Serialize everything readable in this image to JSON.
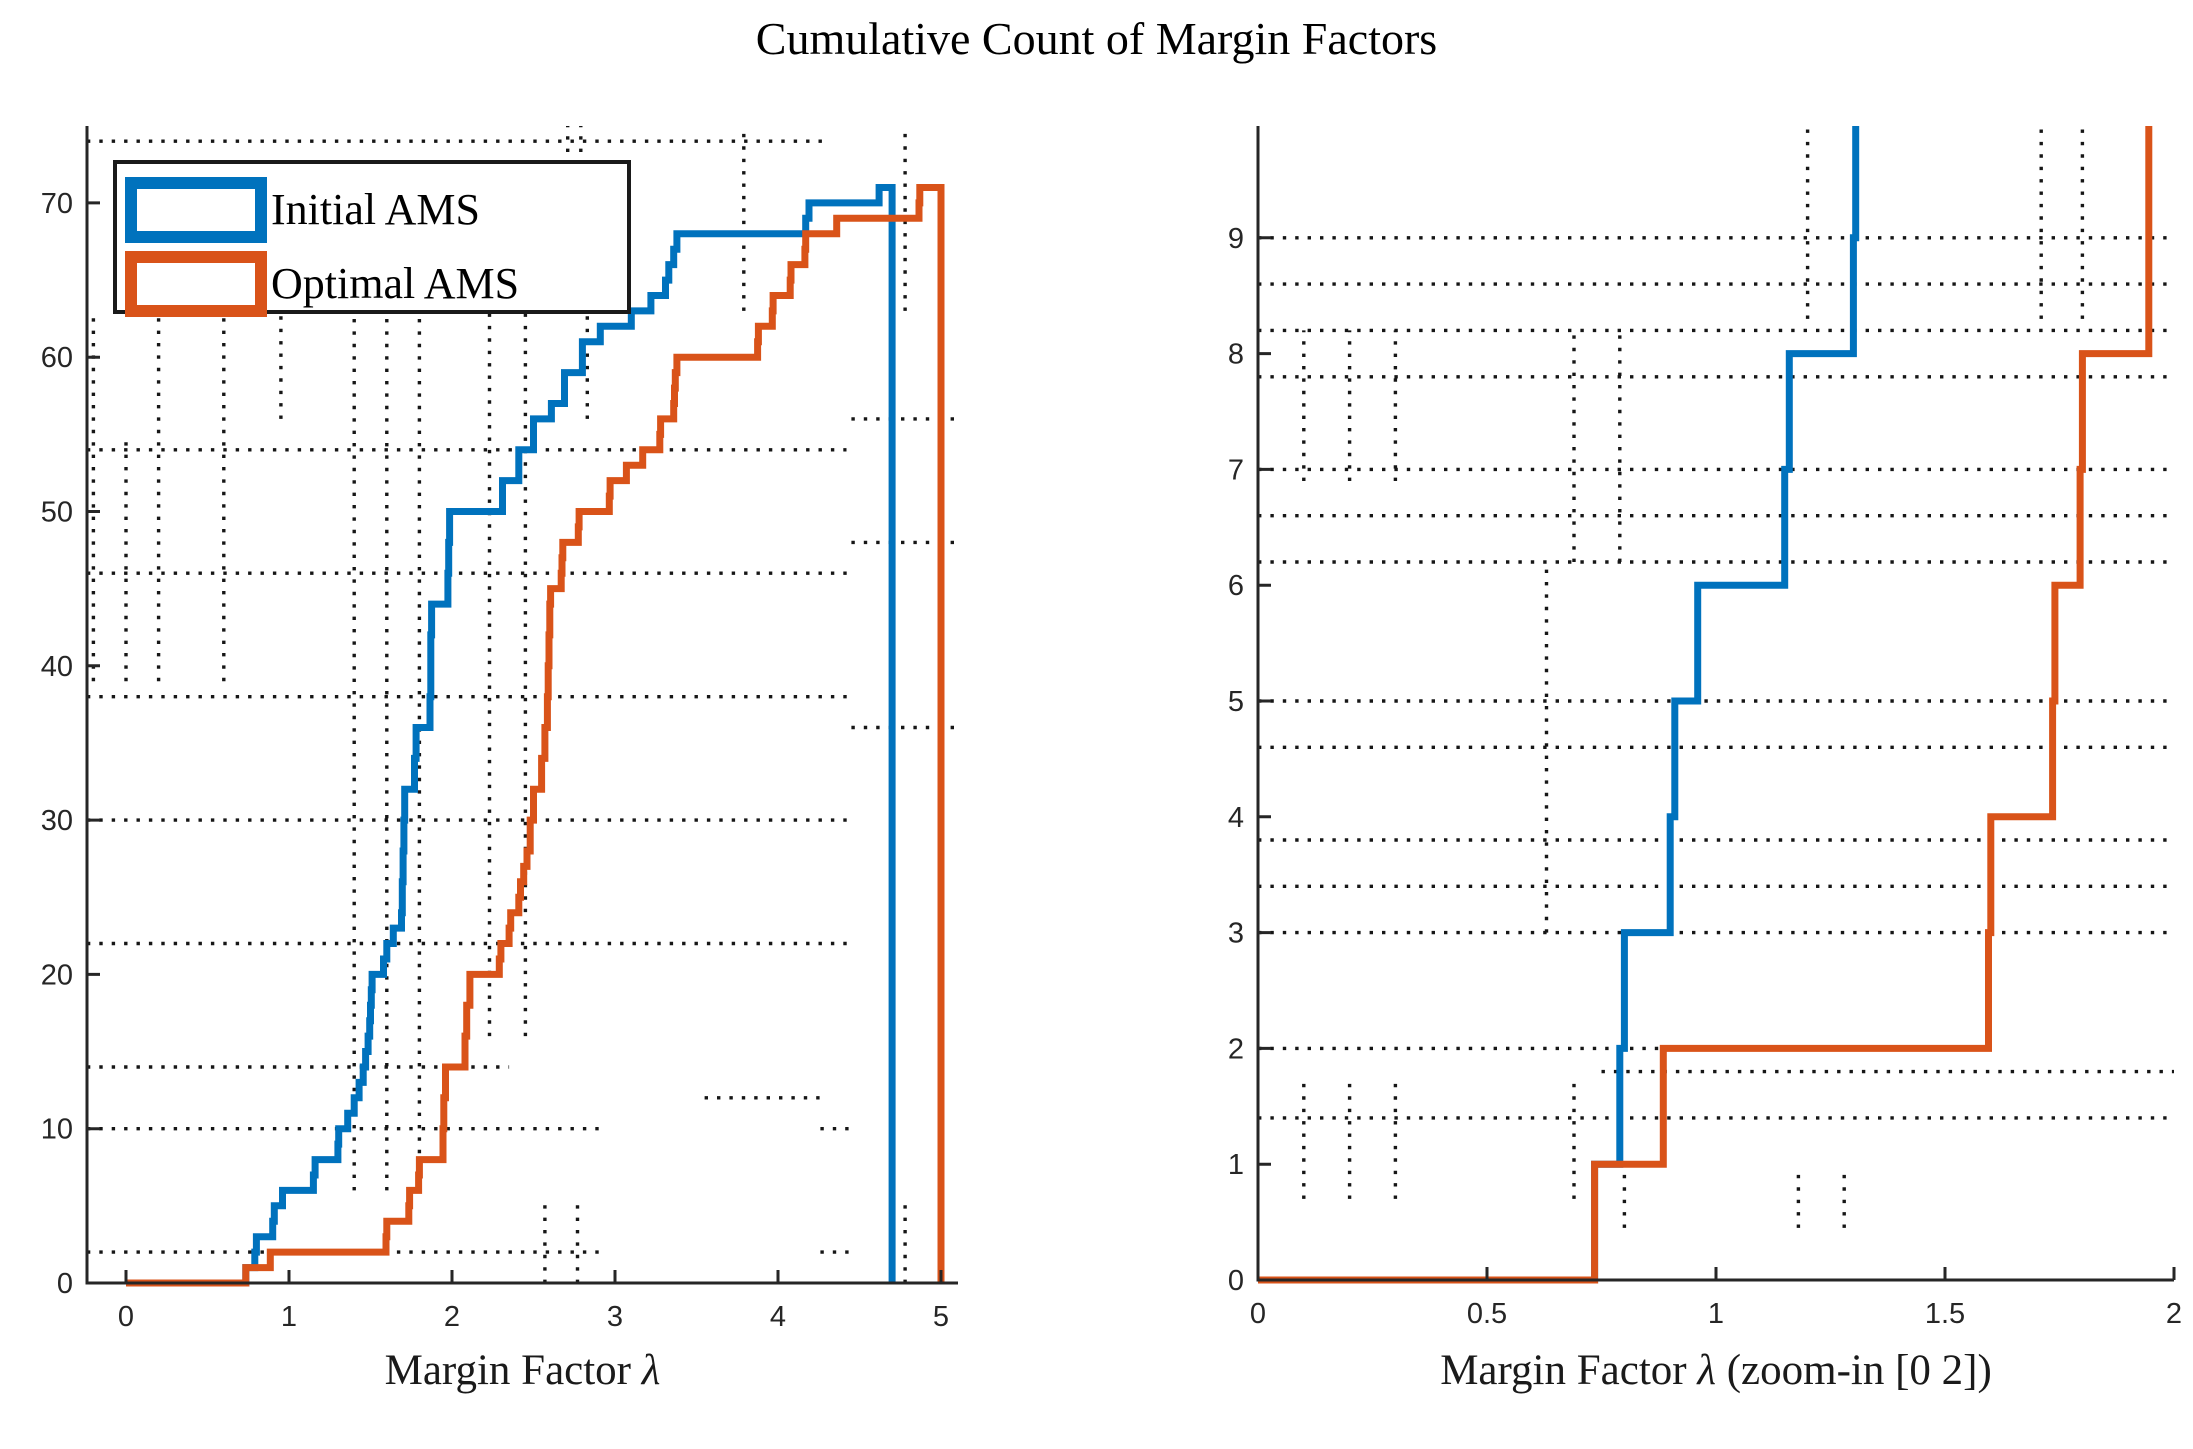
{
  "figure": {
    "title": "Cumulative Count of Margin Factors",
    "background": "#ffffff"
  },
  "legend": {
    "items": [
      {
        "label": "Initial AMS",
        "color": "#0072BD"
      },
      {
        "label": "Optimal AMS",
        "color": "#D95319"
      }
    ]
  },
  "chart_data": [
    {
      "type": "step",
      "id": "left",
      "title": "Cumulative Count of Margin Factors",
      "xlabel_pre": "Margin Factor ",
      "xlabel_lambda": "λ",
      "xlabel_post": "",
      "ylabel": "",
      "xlim": [
        -0.24,
        5.1
      ],
      "ylim": [
        0,
        75
      ],
      "xticks": [
        "0",
        "1",
        "2",
        "3",
        "4",
        "5"
      ],
      "xtick_vals": [
        0,
        1,
        2,
        3,
        4,
        5
      ],
      "yticks": [
        "0",
        "10",
        "20",
        "30",
        "40",
        "50",
        "60",
        "70"
      ],
      "ytick_vals": [
        0,
        10,
        20,
        30,
        40,
        50,
        60,
        70
      ],
      "grid": "dotted confidence-bound segments",
      "legend_position": "northwest",
      "dotted_h": [
        [
          74,
          -0.24,
          4.31
        ],
        [
          54,
          -0.24,
          4.42
        ],
        [
          56,
          4.45,
          5.1
        ],
        [
          48,
          4.45,
          5.1
        ],
        [
          46,
          -0.24,
          4.45
        ],
        [
          38,
          -0.24,
          4.45
        ],
        [
          36,
          4.45,
          5.1
        ],
        [
          30,
          -0.24,
          4.45
        ],
        [
          22,
          -0.24,
          4.45
        ],
        [
          14,
          -0.24,
          2.35
        ],
        [
          12,
          3.55,
          4.26
        ],
        [
          10,
          -0.24,
          2.9
        ],
        [
          10,
          4.26,
          4.45
        ],
        [
          2,
          -0.24,
          2.9
        ],
        [
          2,
          4.26,
          4.45
        ]
      ],
      "dotted_v": [
        [
          -0.2,
          39,
          63
        ],
        [
          0.0,
          39,
          55
        ],
        [
          0.2,
          39,
          63
        ],
        [
          0.6,
          39,
          63
        ],
        [
          0.95,
          56,
          63
        ],
        [
          1.4,
          6,
          63
        ],
        [
          1.6,
          6,
          63
        ],
        [
          1.8,
          6,
          63
        ],
        [
          2.23,
          16,
          63
        ],
        [
          2.45,
          16,
          63
        ],
        [
          2.83,
          56,
          63
        ],
        [
          2.57,
          0,
          5.5
        ],
        [
          2.77,
          0,
          5.5
        ],
        [
          2.71,
          73.3,
          75
        ],
        [
          2.79,
          73.3,
          75
        ],
        [
          3.79,
          63,
          74.6
        ],
        [
          4.78,
          63,
          74.6
        ],
        [
          4.78,
          0,
          5.2
        ]
      ]
    },
    {
      "type": "step",
      "id": "right",
      "xlabel_pre": "Margin Factor ",
      "xlabel_lambda": "λ",
      "xlabel_post": " (zoom-in [0 2])",
      "ylabel": "",
      "xlim": [
        0,
        2
      ],
      "ylim": [
        0,
        9.97
      ],
      "xticks": [
        "0",
        "0.5",
        "1",
        "1.5",
        "2"
      ],
      "xtick_vals": [
        0,
        0.5,
        1,
        1.5,
        2
      ],
      "yticks": [
        "0",
        "1",
        "2",
        "3",
        "4",
        "5",
        "6",
        "7",
        "8",
        "9"
      ],
      "ytick_vals": [
        0,
        1,
        2,
        3,
        4,
        5,
        6,
        7,
        8,
        9
      ],
      "grid": "dotted confidence-bound segments",
      "dotted_h": [
        [
          9.0,
          0,
          2
        ],
        [
          8.6,
          0,
          2
        ],
        [
          8.2,
          0,
          2
        ],
        [
          7.8,
          0,
          2
        ],
        [
          7.0,
          0,
          2
        ],
        [
          6.6,
          0,
          2
        ],
        [
          6.2,
          0,
          2
        ],
        [
          5.0,
          0,
          2
        ],
        [
          4.6,
          0,
          2
        ],
        [
          3.8,
          0,
          2
        ],
        [
          3.4,
          0,
          2
        ],
        [
          3.0,
          0,
          2
        ],
        [
          2.0,
          0,
          0.88
        ],
        [
          1.8,
          0.75,
          2
        ],
        [
          1.4,
          0,
          2
        ]
      ],
      "dotted_v": [
        [
          0.1,
          0.7,
          1.75
        ],
        [
          0.2,
          0.7,
          1.75
        ],
        [
          0.3,
          0.7,
          1.75
        ],
        [
          0.69,
          0.7,
          1.75
        ],
        [
          0.1,
          6.9,
          8.2
        ],
        [
          0.2,
          6.9,
          8.2
        ],
        [
          0.3,
          6.9,
          8.2
        ],
        [
          0.69,
          6.2,
          8.2
        ],
        [
          0.79,
          6.2,
          8.2
        ],
        [
          0.63,
          3.0,
          6.2
        ],
        [
          0.8,
          0.45,
          0.95
        ],
        [
          1.18,
          0.45,
          0.95
        ],
        [
          1.28,
          0.45,
          0.95
        ],
        [
          1.2,
          8.3,
          9.97
        ],
        [
          1.71,
          8.3,
          9.97
        ],
        [
          1.8,
          8.3,
          9.97
        ]
      ]
    }
  ],
  "series": [
    {
      "name": "Initial AMS",
      "color": "#0072BD",
      "steps": [
        [
          0.735,
          1
        ],
        [
          0.79,
          2
        ],
        [
          0.8,
          3
        ],
        [
          0.9,
          4
        ],
        [
          0.91,
          5
        ],
        [
          0.96,
          6
        ],
        [
          1.15,
          7
        ],
        [
          1.16,
          8
        ],
        [
          1.3,
          9
        ],
        [
          1.305,
          10
        ],
        [
          1.36,
          11
        ],
        [
          1.4,
          12
        ],
        [
          1.43,
          13
        ],
        [
          1.455,
          14
        ],
        [
          1.47,
          15
        ],
        [
          1.485,
          16
        ],
        [
          1.495,
          17
        ],
        [
          1.5,
          18
        ],
        [
          1.505,
          19
        ],
        [
          1.51,
          20
        ],
        [
          1.58,
          21
        ],
        [
          1.6,
          22
        ],
        [
          1.64,
          23
        ],
        [
          1.69,
          24
        ],
        [
          1.695,
          26
        ],
        [
          1.7,
          28
        ],
        [
          1.705,
          30
        ],
        [
          1.71,
          32
        ],
        [
          1.77,
          34
        ],
        [
          1.78,
          36
        ],
        [
          1.865,
          38
        ],
        [
          1.87,
          42
        ],
        [
          1.875,
          44
        ],
        [
          1.975,
          46
        ],
        [
          1.98,
          48
        ],
        [
          1.985,
          50
        ],
        [
          2.31,
          52
        ],
        [
          2.41,
          54
        ],
        [
          2.5,
          56
        ],
        [
          2.61,
          57
        ],
        [
          2.69,
          59
        ],
        [
          2.8,
          61
        ],
        [
          2.91,
          62
        ],
        [
          3.1,
          63
        ],
        [
          3.22,
          64
        ],
        [
          3.31,
          65
        ],
        [
          3.33,
          66
        ],
        [
          3.36,
          67
        ],
        [
          3.38,
          68
        ],
        [
          4.17,
          69
        ],
        [
          4.19,
          70
        ],
        [
          4.62,
          71
        ]
      ],
      "max_count": 71,
      "close_x": 4.7
    },
    {
      "name": "Optimal AMS",
      "color": "#D95319",
      "steps": [
        [
          0.735,
          1
        ],
        [
          0.885,
          2
        ],
        [
          1.595,
          3
        ],
        [
          1.6,
          4
        ],
        [
          1.735,
          5
        ],
        [
          1.74,
          6
        ],
        [
          1.795,
          7
        ],
        [
          1.8,
          8
        ],
        [
          1.945,
          10
        ],
        [
          1.95,
          12
        ],
        [
          1.96,
          14
        ],
        [
          2.08,
          16
        ],
        [
          2.09,
          18
        ],
        [
          2.11,
          20
        ],
        [
          2.29,
          21
        ],
        [
          2.3,
          22
        ],
        [
          2.35,
          23
        ],
        [
          2.36,
          24
        ],
        [
          2.41,
          25
        ],
        [
          2.42,
          26
        ],
        [
          2.44,
          27
        ],
        [
          2.46,
          28
        ],
        [
          2.48,
          30
        ],
        [
          2.5,
          32
        ],
        [
          2.55,
          34
        ],
        [
          2.57,
          36
        ],
        [
          2.585,
          38
        ],
        [
          2.59,
          40
        ],
        [
          2.595,
          42
        ],
        [
          2.6,
          44
        ],
        [
          2.605,
          45
        ],
        [
          2.67,
          46
        ],
        [
          2.675,
          47
        ],
        [
          2.68,
          48
        ],
        [
          2.775,
          49
        ],
        [
          2.78,
          50
        ],
        [
          2.965,
          51
        ],
        [
          2.97,
          52
        ],
        [
          3.07,
          53
        ],
        [
          3.17,
          54
        ],
        [
          3.275,
          55
        ],
        [
          3.28,
          56
        ],
        [
          3.36,
          57
        ],
        [
          3.365,
          58
        ],
        [
          3.37,
          59
        ],
        [
          3.38,
          60
        ],
        [
          3.875,
          61
        ],
        [
          3.88,
          62
        ],
        [
          3.965,
          63
        ],
        [
          3.97,
          64
        ],
        [
          4.075,
          65
        ],
        [
          4.08,
          66
        ],
        [
          4.165,
          67
        ],
        [
          4.17,
          68
        ],
        [
          4.36,
          69
        ],
        [
          4.865,
          70
        ],
        [
          4.87,
          71
        ]
      ],
      "max_count": 71,
      "close_x": 5.0
    }
  ],
  "style": {
    "axis_color": "#262626",
    "bound_color": "#161616",
    "initial_color": "#0072BD",
    "optimal_color": "#D95319"
  }
}
